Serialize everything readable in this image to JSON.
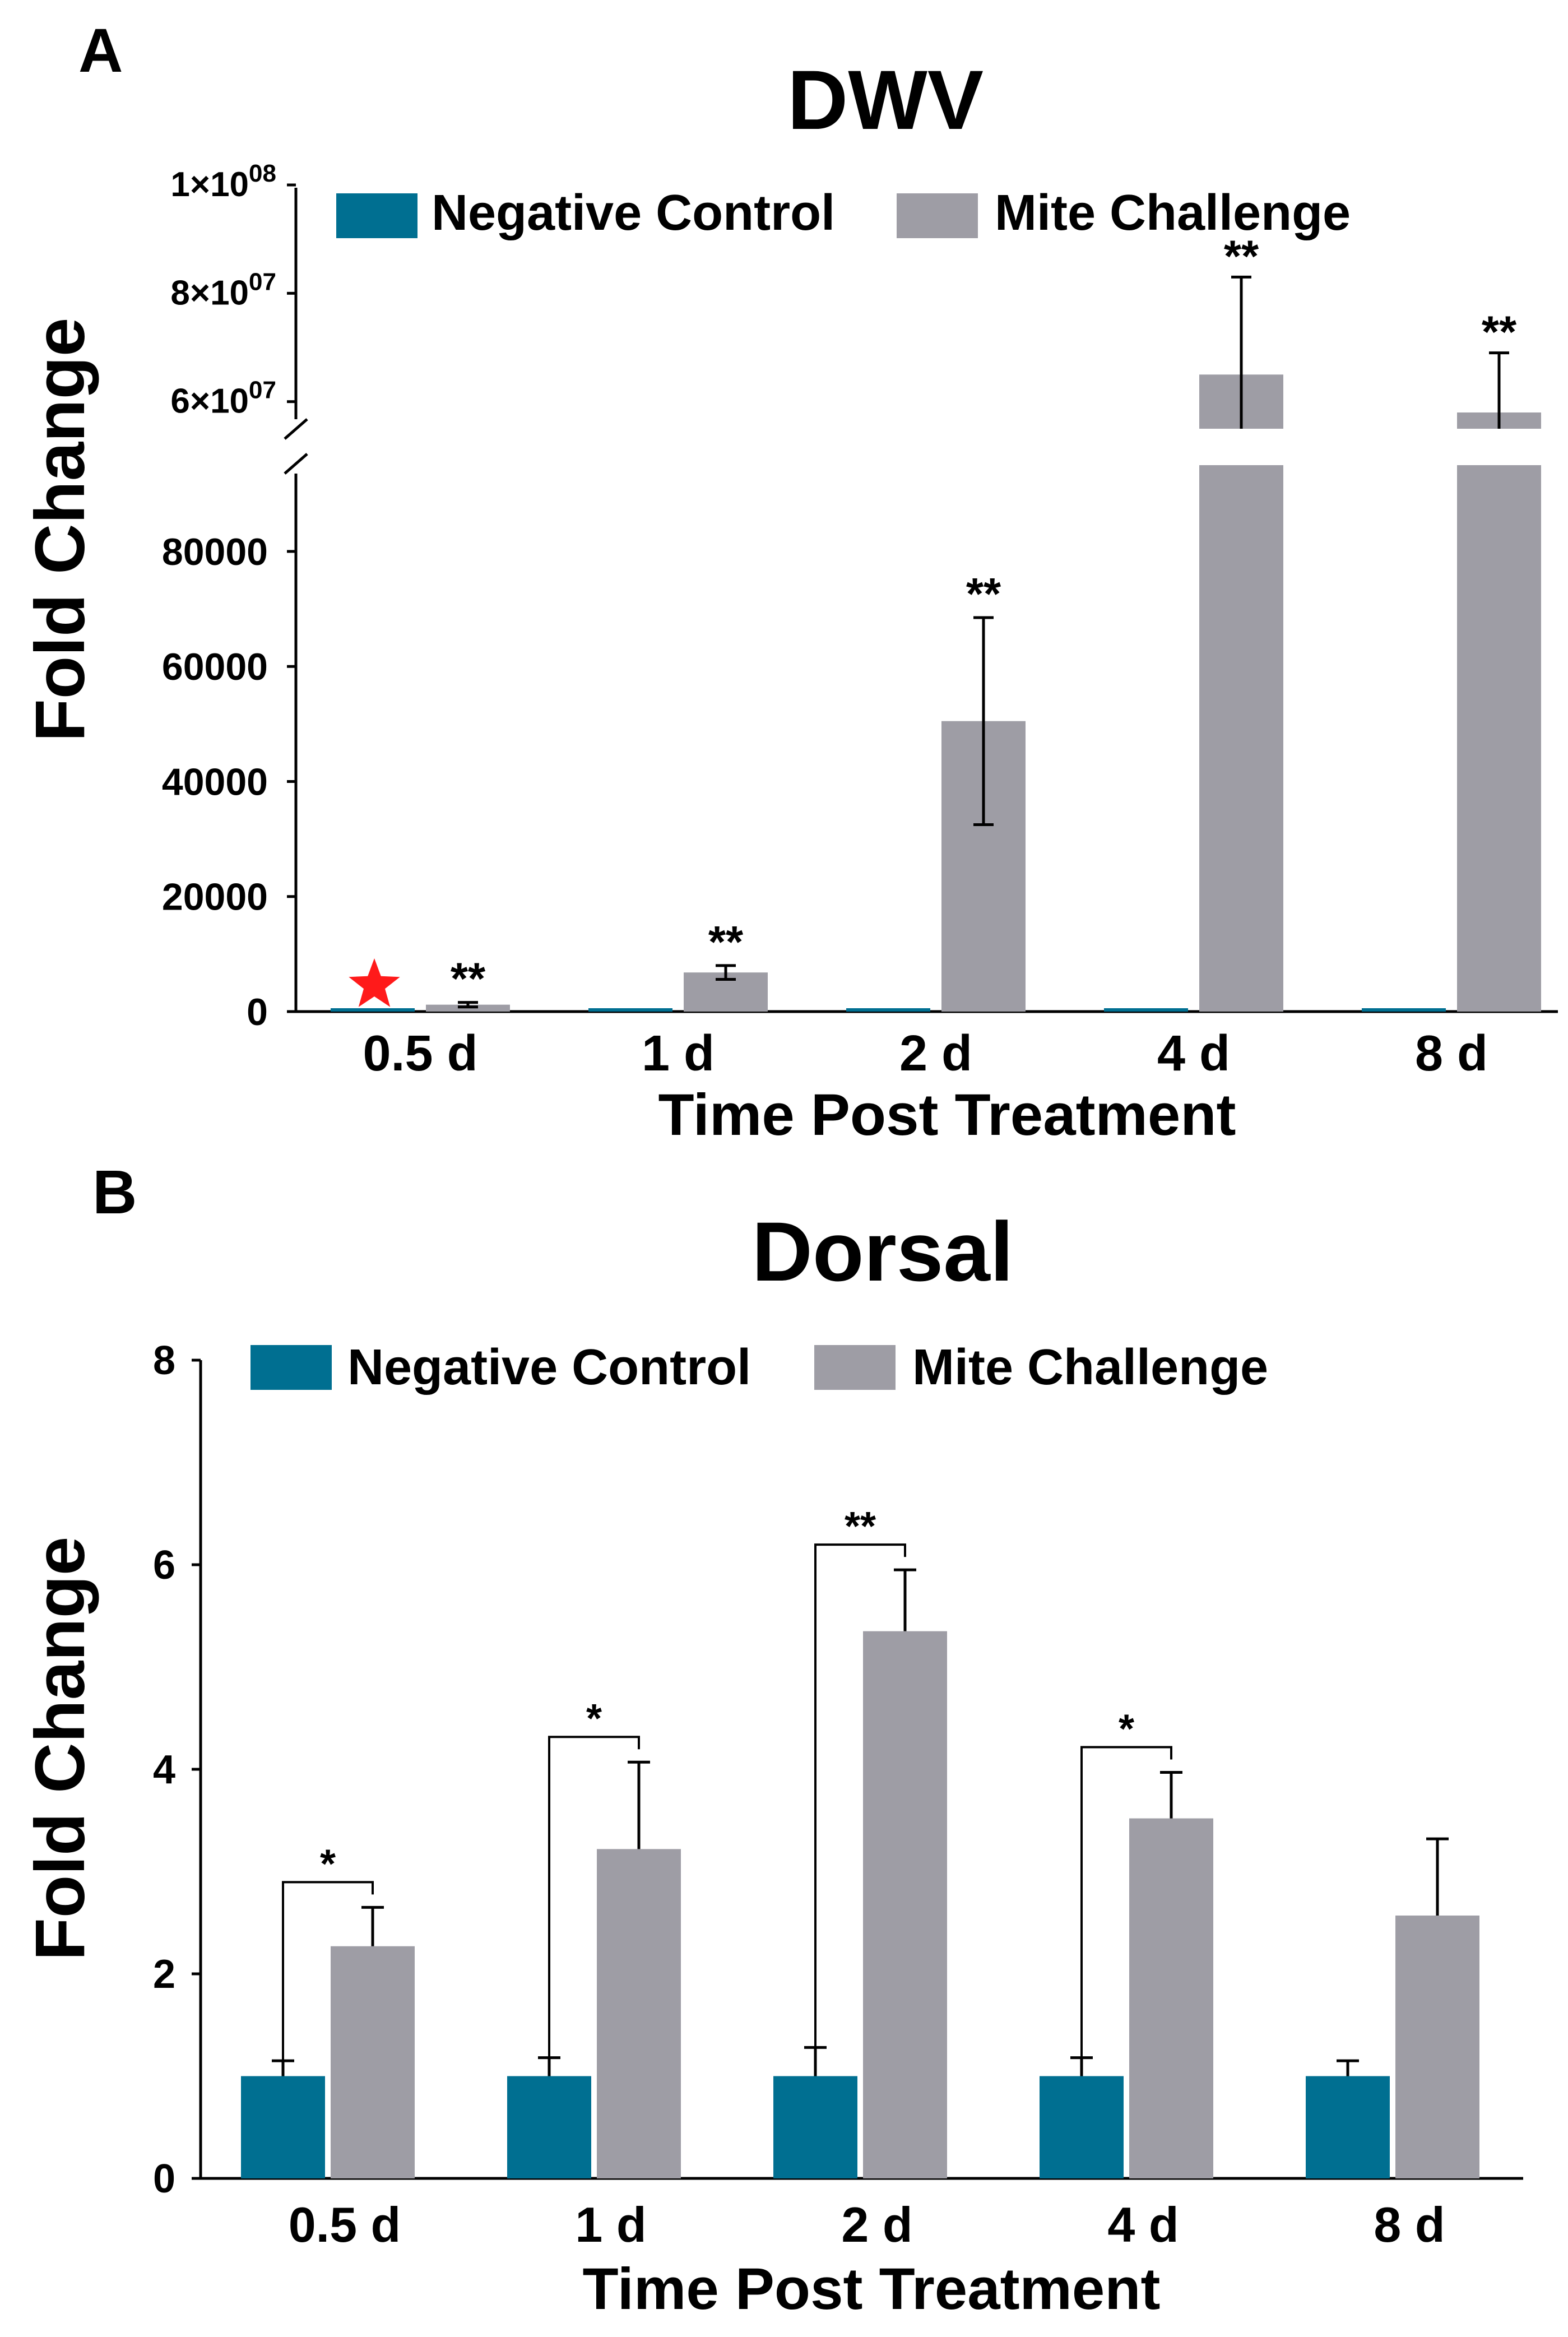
{
  "colors": {
    "control": "#006f91",
    "mite": "#9e9da5",
    "star": "#ff1a1a",
    "axis": "#000000"
  },
  "chart_data": [
    {
      "panel": "A",
      "type": "bar",
      "title": "DWV",
      "xlabel": "Time Post Treatment",
      "ylabel": "Fold Change",
      "categories": [
        "0.5 d",
        "1 d",
        "2 d",
        "4 d",
        "8 d"
      ],
      "legend": [
        "Negative Control",
        "Mite Challenge"
      ],
      "legend_position": "top",
      "axis_break": {
        "lower_range": [
          0,
          95000
        ],
        "upper_range": [
          55000000,
          100000000
        ]
      },
      "lower_ticks": [
        "0",
        "20000",
        "40000",
        "60000",
        "80000"
      ],
      "lower_tick_values": [
        0,
        20000,
        40000,
        60000,
        80000
      ],
      "upper_ticks": [
        {
          "mant": "6",
          "base": "×10",
          "exp": "07",
          "value": 60000000
        },
        {
          "mant": "8",
          "base": "×10",
          "exp": "07",
          "value": 80000000
        },
        {
          "mant": "1",
          "base": "×10",
          "exp": "08",
          "value": 100000000
        }
      ],
      "series": [
        {
          "name": "Negative Control",
          "values": [
            1,
            1,
            1,
            1,
            1
          ],
          "errors": [
            0,
            0,
            0,
            0,
            0
          ]
        },
        {
          "name": "Mite Challenge",
          "values": [
            1200,
            6800,
            50500,
            65000000,
            58000000
          ],
          "errors": [
            400,
            1200,
            18000,
            18000000,
            11000000
          ]
        }
      ],
      "significance": [
        "**",
        "**",
        "**",
        "**",
        "**"
      ],
      "star_marker_category": "0.5 d"
    },
    {
      "panel": "B",
      "type": "bar",
      "title": "Dorsal",
      "xlabel": "Time Post Treatment",
      "ylabel": "Fold Change",
      "categories": [
        "0.5 d",
        "1 d",
        "2 d",
        "4 d",
        "8 d"
      ],
      "legend": [
        "Negative Control",
        "Mite Challenge"
      ],
      "legend_position": "top",
      "ylim": [
        0,
        8
      ],
      "yticks": [
        "0",
        "2",
        "4",
        "6",
        "8"
      ],
      "ytick_values": [
        0,
        2,
        4,
        6,
        8
      ],
      "series": [
        {
          "name": "Negative Control",
          "values": [
            1.0,
            1.0,
            1.0,
            1.0,
            1.0
          ],
          "errors": [
            0.15,
            0.18,
            0.28,
            0.18,
            0.15
          ]
        },
        {
          "name": "Mite Challenge",
          "values": [
            2.27,
            3.22,
            5.35,
            3.52,
            2.57
          ],
          "errors": [
            0.38,
            0.85,
            0.6,
            0.45,
            0.75
          ]
        }
      ],
      "significance": [
        "*",
        "*",
        "**",
        "*",
        ""
      ]
    }
  ]
}
